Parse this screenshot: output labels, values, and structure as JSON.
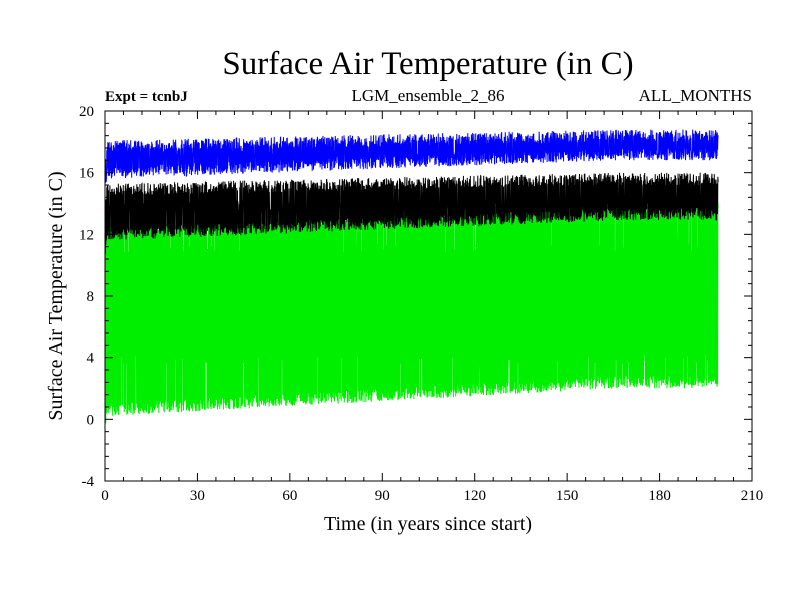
{
  "chart_data": {
    "type": "line",
    "title": "Surface Air Temperature (in C)",
    "subtitle_left": "Expt = tcnbJ",
    "subtitle_center": "LGM_ensemble_2_86",
    "subtitle_right": "ALL_MONTHS",
    "xlabel": "Time (in years since start)",
    "ylabel": "Surface Air Temperature (in C)",
    "xlim": [
      0,
      210
    ],
    "ylim": [
      -4,
      20
    ],
    "x_ticks": [
      "0",
      "30",
      "60",
      "90",
      "120",
      "150",
      "180",
      "210"
    ],
    "y_ticks": [
      "-4",
      "0",
      "4",
      "8",
      "12",
      "16",
      "20"
    ],
    "x_end": 199,
    "grid": false,
    "series": [
      {
        "name": "green",
        "color": "#00ee00",
        "upper_start": 11,
        "upper_end": 13.8,
        "lower_start": 0.6,
        "lower_end": 2.4,
        "upper_dips": 10.8,
        "lower_peaks": 4.2
      },
      {
        "name": "black",
        "color": "#000000",
        "upper_start": 14.2,
        "upper_end": 15.6,
        "lower_start": 12.0,
        "lower_end": 13.3,
        "upper_dips": 13.6,
        "lower_peaks": 14.0
      },
      {
        "name": "blue",
        "color": "#0000ff",
        "upper_start": 17.0,
        "upper_end": 18.4,
        "lower_start": 16.0,
        "lower_end": 17.2,
        "upper_dips": 16.8,
        "lower_peaks": 17.4
      }
    ]
  }
}
